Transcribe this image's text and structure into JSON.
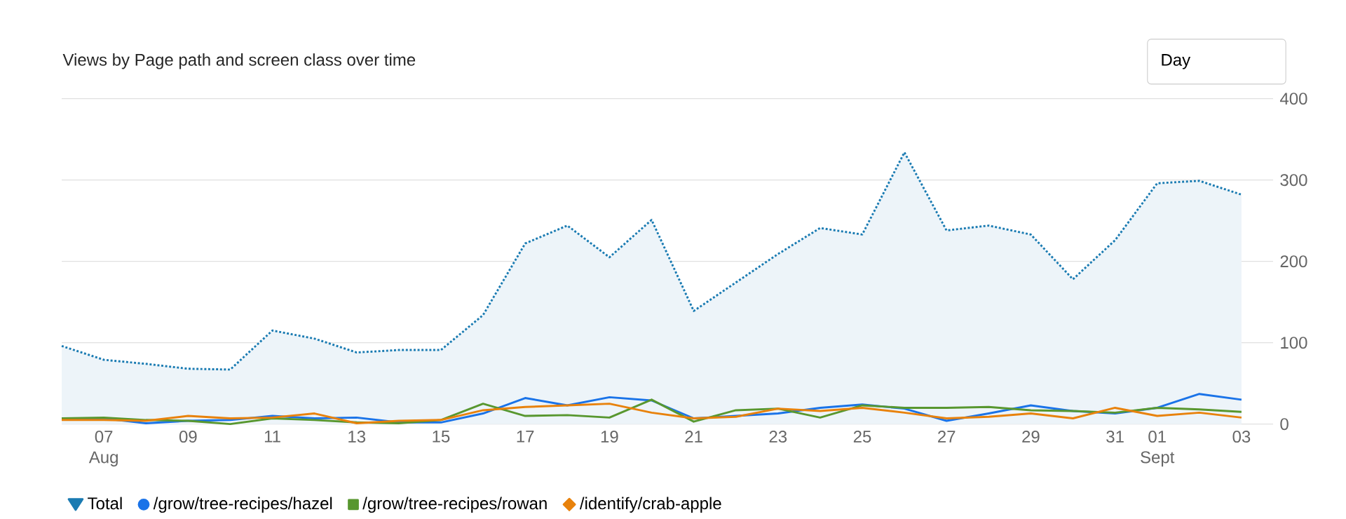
{
  "chart_data": {
    "type": "line",
    "title": "Views by Page path and screen class over time",
    "categories": [
      null,
      "07 Aug",
      null,
      "09",
      null,
      "11",
      null,
      "13",
      null,
      "15",
      null,
      "17",
      null,
      "19",
      null,
      "21",
      null,
      "23",
      null,
      "25",
      null,
      "27",
      null,
      "29",
      null,
      "31",
      "01 Sept",
      null,
      "03"
    ],
    "series": [
      {
        "name": "Total",
        "type": "area",
        "line_style": "dotted",
        "color": "#1a7bb2",
        "values": [
          96,
          79,
          74,
          68,
          67,
          115,
          105,
          88,
          91,
          91,
          134,
          222,
          244,
          205,
          251,
          139,
          174,
          209,
          241,
          233,
          334,
          238,
          244,
          233,
          178,
          226,
          296,
          299,
          282
        ]
      },
      {
        "name": "/grow/tree-recipes/hazel",
        "color": "#1a73e8",
        "values": [
          7,
          7,
          1,
          4,
          5,
          10,
          7,
          8,
          2,
          2,
          13,
          32,
          23,
          33,
          29,
          7,
          10,
          13,
          20,
          24,
          19,
          4,
          13,
          23,
          16,
          13,
          20,
          37,
          30
        ]
      },
      {
        "name": "/grow/tree-recipes/rowan",
        "color": "#58972f",
        "values": [
          7,
          8,
          5,
          4,
          0,
          7,
          5,
          2,
          1,
          5,
          25,
          10,
          11,
          8,
          30,
          3,
          17,
          19,
          8,
          23,
          20,
          20,
          21,
          17,
          16,
          14,
          20,
          18,
          15
        ]
      },
      {
        "name": "/identify/crab-apple",
        "color": "#e8820c",
        "values": [
          5,
          5,
          4,
          10,
          7,
          8,
          13,
          1,
          4,
          5,
          17,
          21,
          23,
          25,
          14,
          7,
          9,
          19,
          16,
          20,
          14,
          7,
          9,
          13,
          7,
          20,
          10,
          14,
          8
        ]
      }
    ],
    "ylim": [
      0,
      400
    ],
    "yticks": [
      0,
      100,
      200,
      300,
      400
    ],
    "grid": "y",
    "legend": "bottom left",
    "annotations": [
      "Day"
    ]
  }
}
